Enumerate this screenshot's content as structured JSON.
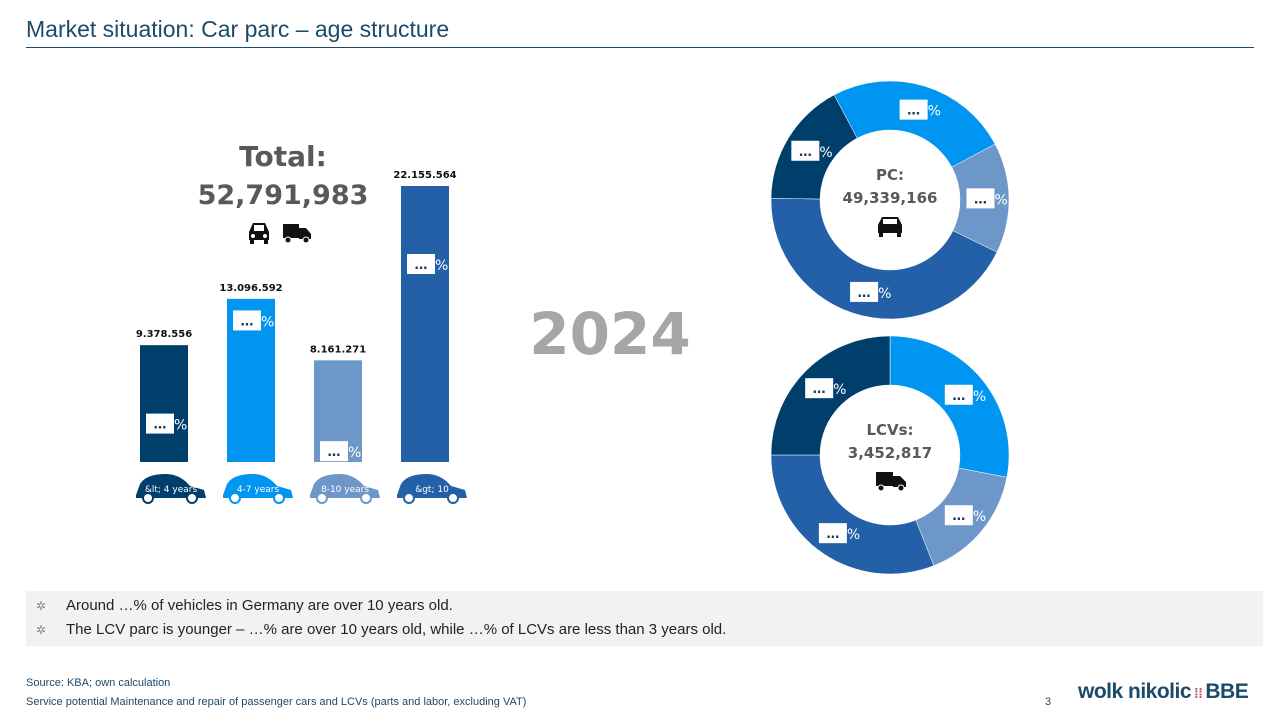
{
  "title": "Market situation: Car parc – age structure",
  "total": {
    "label": "Total:",
    "value": "52,791,983",
    "icons": [
      "car-icon",
      "truck-icon"
    ]
  },
  "year": "2024",
  "colors": {
    "lt4": "#003f6b",
    "4to7": "#0095f0",
    "8to10": "#6d97c9",
    "gt10": "#2360a8",
    "title": "#1b4a6b"
  },
  "chart_data": [
    {
      "type": "bar",
      "categories": [
        "&lt; 4 years",
        "4-7 years",
        "8-10 years",
        "&gt; 10"
      ],
      "values": [
        9378556,
        13096592,
        8161271,
        22155564
      ],
      "value_labels": [
        "9.378.556",
        "13.096.592",
        "8.161.271",
        "22.155.564"
      ],
      "segment_labels": [
        "…%",
        "…%",
        "…%",
        "…%"
      ],
      "colors": [
        "#003f6b",
        "#0095f0",
        "#6d97c9",
        "#2360a8"
      ],
      "grid": false
    },
    {
      "type": "pie",
      "center_label": "PC:",
      "center_value": "49,339,166",
      "icon": "car-icon",
      "categories": [
        "4-7 years",
        "8-10 years",
        "&gt; 10",
        "&lt; 4 years"
      ],
      "values": [
        25,
        15,
        43,
        17
      ],
      "labels": [
        "…%",
        "…%",
        "…%",
        "…%"
      ],
      "colors": [
        "#0095f0",
        "#6d97c9",
        "#2360a8",
        "#003f6b"
      ]
    },
    {
      "type": "pie",
      "center_label": "LCVs:",
      "center_value": "3,452,817",
      "icon": "truck-icon",
      "categories": [
        "4-7 years",
        "8-10 years",
        "&gt; 10",
        "&lt; 4 years"
      ],
      "values": [
        28,
        16,
        31,
        25
      ],
      "labels": [
        "…%",
        "…%",
        "…%",
        "…%"
      ],
      "colors": [
        "#0095f0",
        "#6d97c9",
        "#2360a8",
        "#003f6b"
      ]
    }
  ],
  "bullets": [
    "Around …% of vehicles in Germany are over 10 years old.",
    "The LCV parc is younger – …% are over 10 years old, while …% of LCVs are less than 3 years old."
  ],
  "source": "Source: KBA; own calculation",
  "footer": "Service potential Maintenance and repair of passenger cars and LCVs (parts and labor, excluding VAT)",
  "page_number": "3",
  "logo": "wolk nikolic BBE"
}
